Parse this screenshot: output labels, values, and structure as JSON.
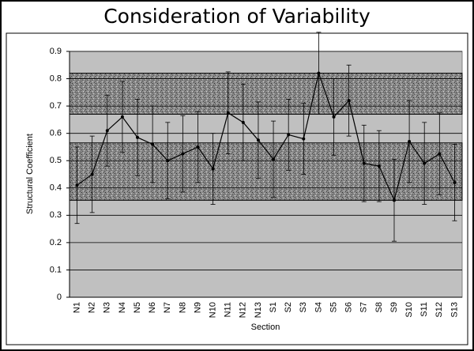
{
  "chart_data": {
    "type": "line",
    "title": "Consideration of Variability",
    "x_label": "Section",
    "y_label": "Structural Coefficient",
    "categories": [
      "N1",
      "N2",
      "N3",
      "N4",
      "N5",
      "N6",
      "N7",
      "N8",
      "N9",
      "N10",
      "N11",
      "N12",
      "N13",
      "S1",
      "S2",
      "S3",
      "S4",
      "S5",
      "S6",
      "S7",
      "S8",
      "S9",
      "S10",
      "S11",
      "S12",
      "S13"
    ],
    "series": [
      {
        "color": "#000000",
        "values": [
          0.41,
          0.45,
          0.61,
          0.66,
          0.585,
          0.56,
          0.5,
          0.525,
          0.55,
          0.47,
          0.675,
          0.64,
          0.575,
          0.505,
          0.595,
          0.58,
          0.82,
          0.66,
          0.72,
          0.49,
          0.48,
          0.355,
          0.57,
          0.49,
          0.525,
          0.42
        ],
        "errors": [
          0.14,
          0.14,
          0.13,
          0.13,
          0.14,
          0.14,
          0.14,
          0.14,
          0.13,
          0.13,
          0.15,
          0.14,
          0.14,
          0.14,
          0.13,
          0.13,
          0.15,
          0.14,
          0.13,
          0.14,
          0.13,
          0.15,
          0.15,
          0.15,
          0.15,
          0.14
        ]
      }
    ],
    "bands": [
      [
        0.355,
        0.565
      ],
      [
        0.67,
        0.82
      ]
    ],
    "ylim": [
      0,
      0.9
    ],
    "yticks": [
      0,
      0.1,
      0.2,
      0.3,
      0.4,
      0.5,
      0.6,
      0.7,
      0.8,
      0.9
    ],
    "grid": true
  }
}
